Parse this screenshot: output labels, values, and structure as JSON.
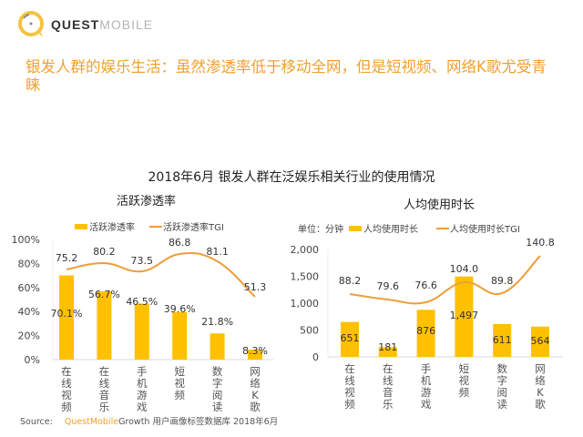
{
  "logo": {
    "brand_bold": "QUEST",
    "brand_light": "MOBILE",
    "icon": "questmobile-logo-icon"
  },
  "headline": "银发人群的娱乐生活：虽然渗透率低于移动全网，但是短视频、网络K歌尤受青睐",
  "main_title": "2018年6月 银发人群在泛娱乐相关行业的使用情况",
  "colors": {
    "bar": "#FFC000",
    "line": "#ED9E3A",
    "headline": "#F0A030",
    "axis": "#d9d9d9"
  },
  "source": {
    "label": "Source:",
    "brand": "QuestMobile",
    "text": "Growth 用户画像标签数据库 2018年6月"
  },
  "chart_data": [
    {
      "type": "bar",
      "title": "活跃渗透率",
      "categories": [
        "在线视频",
        "在线音乐",
        "手机游戏",
        "短视频",
        "数字阅读",
        "网络K歌"
      ],
      "yticks": [
        "0%",
        "20%",
        "40%",
        "60%",
        "80%",
        "100%"
      ],
      "ylim": [
        0,
        100
      ],
      "unit_label": "",
      "legend": [
        "活跃渗透率",
        "活跃渗透率TGI"
      ],
      "legend_position": "top",
      "series": [
        {
          "name": "活跃渗透率",
          "kind": "bar",
          "values": [
            70.1,
            56.7,
            46.5,
            39.6,
            21.8,
            8.3
          ],
          "labels": [
            "70.1%",
            "56.7%",
            "46.5%",
            "39.6%",
            "21.8%",
            "8.3%"
          ]
        },
        {
          "name": "活跃渗透率TGI",
          "kind": "line",
          "values": [
            75.2,
            80.2,
            73.5,
            86.8,
            81.1,
            51.3
          ],
          "labels": [
            "75.2",
            "80.2",
            "73.5",
            "86.8",
            "81.1",
            "51.3"
          ]
        }
      ]
    },
    {
      "type": "bar",
      "title": "人均使用时长",
      "categories": [
        "在线视频",
        "在线音乐",
        "手机游戏",
        "短视频",
        "数字阅读",
        "网络K歌"
      ],
      "yticks": [
        "0",
        "500",
        "1,000",
        "1,500",
        "2,000"
      ],
      "ylim": [
        0,
        2000
      ],
      "unit_label": "单位：分钟",
      "legend": [
        "人均使用时长",
        "人均使用时长TGI"
      ],
      "legend_position": "top",
      "series": [
        {
          "name": "人均使用时长",
          "kind": "bar",
          "values": [
            651,
            181,
            876,
            1497,
            611,
            564
          ],
          "labels": [
            "651",
            "181",
            "876",
            "1,497",
            "611",
            "564"
          ]
        },
        {
          "name": "人均使用时长TGI",
          "kind": "line",
          "values": [
            88.2,
            79.6,
            76.6,
            104.0,
            89.8,
            140.8
          ],
          "labels": [
            "88.2",
            "79.6",
            "76.6",
            "104.0",
            "89.8",
            "140.8"
          ]
        }
      ]
    }
  ]
}
